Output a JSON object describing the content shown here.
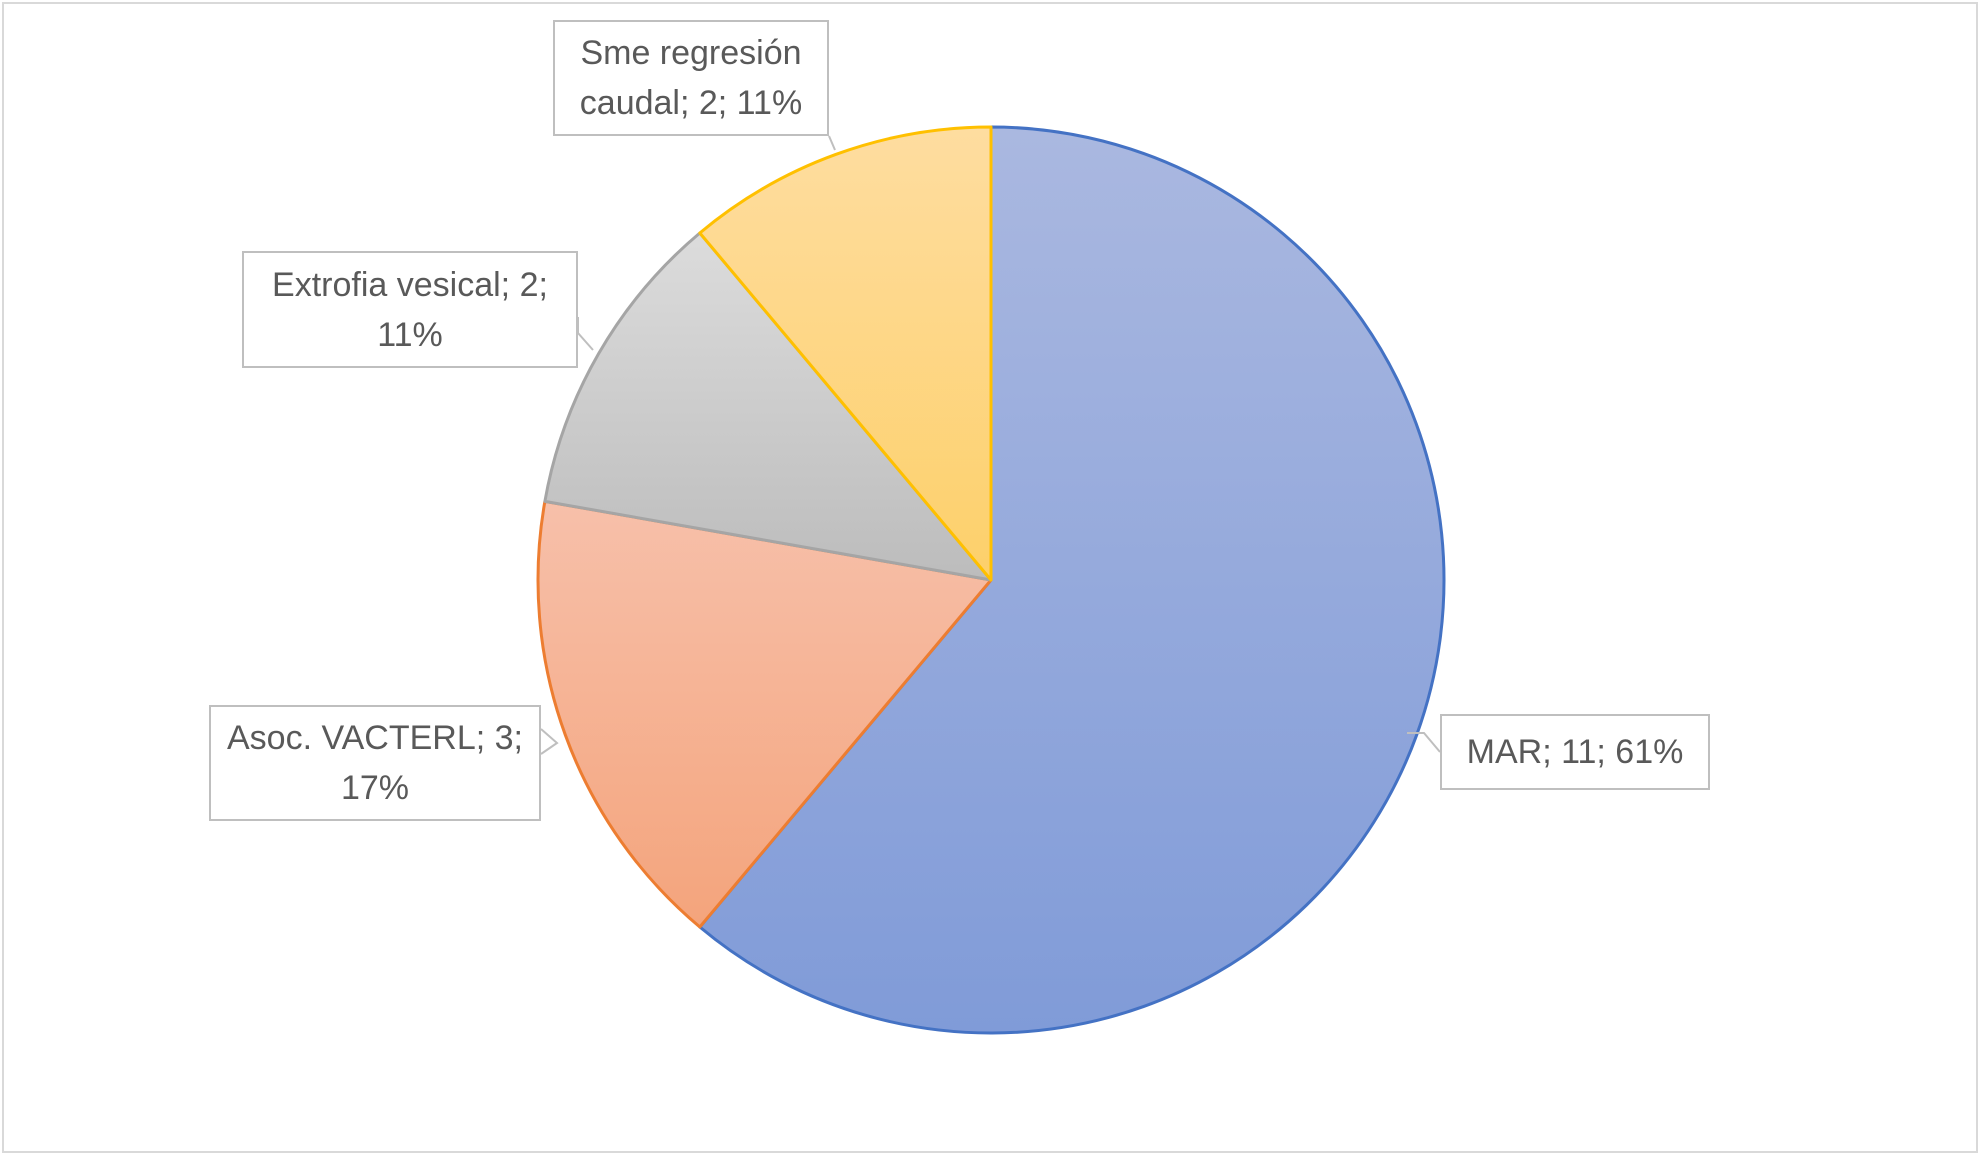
{
  "chart_data": {
    "type": "pie",
    "title": "",
    "slices": [
      {
        "name": "MAR",
        "value": 11,
        "percent": "61%",
        "label": "MAR; 11; 61%",
        "color": "#8ea3d9"
      },
      {
        "name": "Asoc. VACTERL",
        "value": 3,
        "percent": "17%",
        "label_line1": "Asoc. VACTERL; 3;",
        "label_line2": "17%",
        "color": "#f5ae8b"
      },
      {
        "name": "Extrofia vesical",
        "value": 2,
        "percent": "11%",
        "label_line1": "Extrofia vesical; 2;",
        "label_line2": "11%",
        "color": "#c8c8c8"
      },
      {
        "name": "Sme regresión caudal",
        "value": 2,
        "percent": "11%",
        "label_line1": "Sme regresión",
        "label_line2": "caudal; 2; 11%",
        "color": "#fdd580"
      }
    ],
    "start_angle_deg": 0,
    "direction": "clockwise",
    "legend": "none",
    "data_labels": "callouts"
  }
}
